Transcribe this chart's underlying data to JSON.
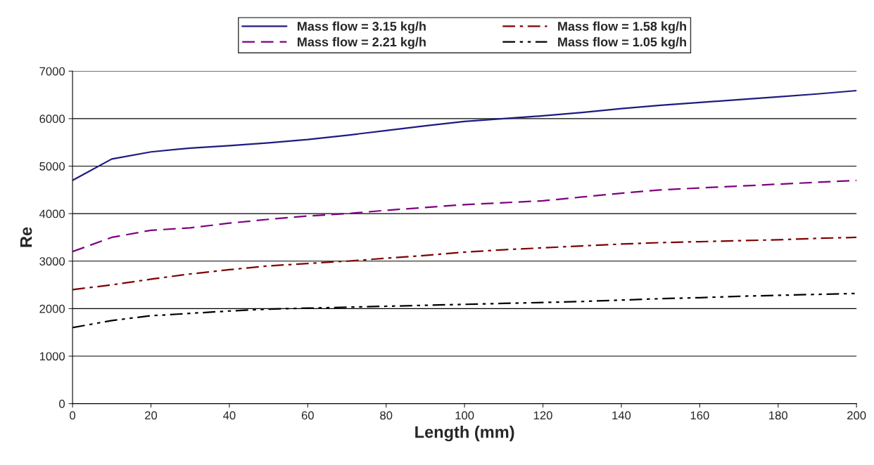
{
  "chart_data": {
    "type": "line",
    "xlabel": "Length (mm)",
    "ylabel": "Re",
    "x": [
      0,
      10,
      20,
      30,
      40,
      50,
      60,
      70,
      80,
      90,
      100,
      110,
      120,
      130,
      140,
      150,
      160,
      170,
      180,
      190,
      200
    ],
    "series": [
      {
        "name": "Mass flow = 3.15 kg/h",
        "color": "#1f1a80",
        "line_style": "solid",
        "values": [
          4700,
          5150,
          5300,
          5380,
          5430,
          5490,
          5560,
          5650,
          5750,
          5850,
          5940,
          6000,
          6060,
          6130,
          6210,
          6280,
          6340,
          6400,
          6460,
          6520,
          6590
        ]
      },
      {
        "name": "Mass flow = 2.21 kg/h",
        "color": "#800080",
        "line_style": "dashed",
        "values": [
          3200,
          3500,
          3650,
          3700,
          3800,
          3880,
          3950,
          4000,
          4070,
          4130,
          4190,
          4230,
          4270,
          4350,
          4430,
          4500,
          4540,
          4580,
          4620,
          4660,
          4700
        ]
      },
      {
        "name": "Mass flow = 1.58 kg/h",
        "color": "#800000",
        "line_style": "dashdot",
        "values": [
          2400,
          2500,
          2620,
          2730,
          2820,
          2900,
          2950,
          3000,
          3060,
          3120,
          3190,
          3240,
          3280,
          3320,
          3360,
          3390,
          3410,
          3430,
          3450,
          3480,
          3500
        ]
      },
      {
        "name": "Mass flow = 1.05 kg/h",
        "color": "#000000",
        "line_style": "dashdotdot",
        "values": [
          1600,
          1750,
          1850,
          1900,
          1950,
          1990,
          2010,
          2030,
          2050,
          2070,
          2090,
          2110,
          2130,
          2150,
          2180,
          2210,
          2230,
          2260,
          2280,
          2300,
          2320
        ]
      }
    ],
    "xlim": [
      0,
      200
    ],
    "xticks": [
      0,
      20,
      40,
      60,
      80,
      100,
      120,
      140,
      160,
      180,
      200
    ],
    "ylim": [
      0,
      7000
    ],
    "yticks": [
      0,
      1000,
      2000,
      3000,
      4000,
      5000,
      6000,
      7000
    ],
    "grid": "y",
    "legend": "top",
    "marker": "none"
  }
}
